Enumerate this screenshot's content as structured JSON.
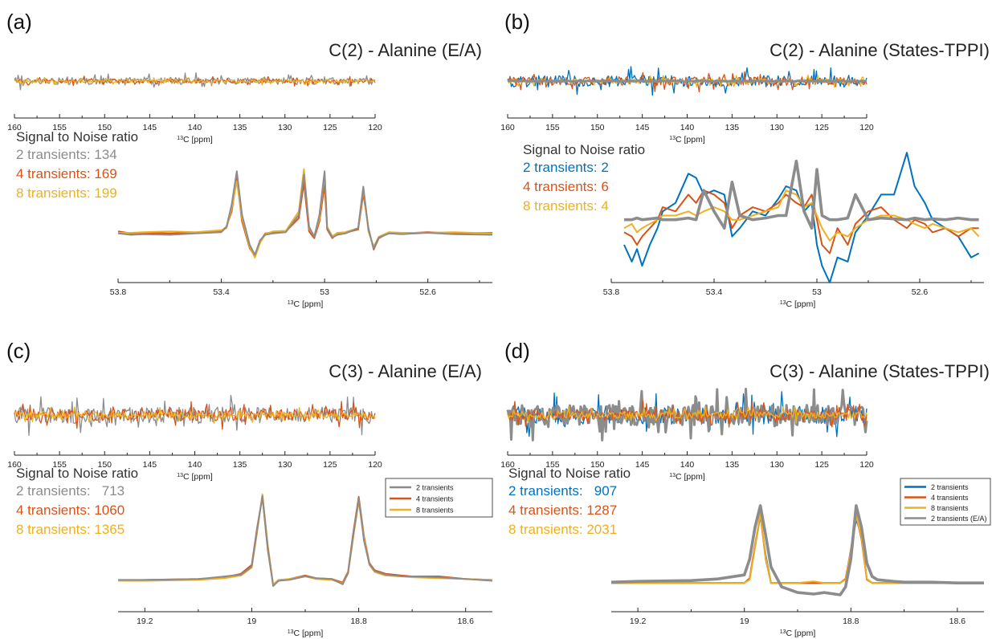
{
  "figure": {
    "series_colors": {
      "gray": "#8c8c8c",
      "blue": "#0072bd",
      "orange": "#d95319",
      "yellow": "#edb120"
    }
  },
  "panels": [
    {
      "letter": "(a)",
      "title": "C(2) - Alanine (E/A)",
      "snr_heading": "Signal to Noise ratio",
      "snr_lines": [
        {
          "text": "2 transients: 134",
          "color": "gray"
        },
        {
          "text": "4 transients: 169",
          "color": "orange"
        },
        {
          "text": "8 transients: 199",
          "color": "yellow"
        }
      ],
      "legend": []
    },
    {
      "letter": "(b)",
      "title": "C(2) - Alanine (States-TPPI)",
      "snr_heading": "Signal to Noise ratio",
      "snr_lines": [
        {
          "text": "2 transients: 2",
          "color": "blue"
        },
        {
          "text": "4 transients: 6",
          "color": "orange"
        },
        {
          "text": "8 transients: 4",
          "color": "yellow"
        }
      ],
      "legend": []
    },
    {
      "letter": "(c)",
      "title": "C(3) - Alanine (E/A)",
      "snr_heading": "Signal to Noise ratio",
      "snr_lines": [
        {
          "text": "2 transients:   713",
          "color": "gray"
        },
        {
          "text": "4 transients: 1060",
          "color": "orange"
        },
        {
          "text": "8 transients: 1365",
          "color": "yellow"
        }
      ],
      "legend": [
        {
          "label": "2 transients",
          "color": "gray"
        },
        {
          "label": "4 transients",
          "color": "orange"
        },
        {
          "label": "8 transients",
          "color": "yellow"
        }
      ]
    },
    {
      "letter": "(d)",
      "title": "C(3) - Alanine (States-TPPI)",
      "snr_heading": "Signal to Noise ratio",
      "snr_lines": [
        {
          "text": "2 transients:   907",
          "color": "blue"
        },
        {
          "text": "4 transients: 1287",
          "color": "orange"
        },
        {
          "text": "8 transients: 2031",
          "color": "yellow"
        }
      ],
      "legend": [
        {
          "label": "2 transients",
          "color": "blue"
        },
        {
          "label": "4 transients",
          "color": "orange"
        },
        {
          "label": "8 transients",
          "color": "yellow"
        },
        {
          "label": "2 transients (E/A)",
          "color": "gray"
        }
      ]
    }
  ],
  "chart_data": [
    {
      "panel": "(a)",
      "role": "full-spectrum noise",
      "type": "line",
      "xlabel": "13C [ppm]",
      "xlim": [
        160,
        120
      ],
      "x_reversed": true,
      "ticks": [
        160,
        155,
        150,
        145,
        140,
        135,
        130,
        125,
        120
      ],
      "grid": false,
      "noise": {
        "gray": 0.18,
        "orange": 0.1,
        "yellow": 0.08
      },
      "series": [
        {
          "color": "gray",
          "style": "noise"
        },
        {
          "color": "orange",
          "style": "noise"
        },
        {
          "color": "yellow",
          "style": "noise"
        }
      ]
    },
    {
      "panel": "(a)",
      "role": "zoom",
      "type": "line",
      "xlabel": "13C [ppm]",
      "xlim": [
        53.8,
        52.35
      ],
      "x_reversed": true,
      "ticks": [
        53.8,
        53.4,
        53,
        52.6
      ],
      "ylim": [
        -0.45,
        1.05
      ],
      "grid": false,
      "x": [
        53.8,
        53.75,
        53.7,
        53.6,
        53.5,
        53.4,
        53.38,
        53.36,
        53.34,
        53.32,
        53.29,
        53.27,
        53.25,
        53.23,
        53.2,
        53.15,
        53.1,
        53.08,
        53.06,
        53.04,
        53.02,
        53.0,
        52.99,
        52.97,
        52.95,
        52.92,
        52.87,
        52.85,
        52.83,
        52.81,
        52.79,
        52.75,
        52.7,
        52.6,
        52.5,
        52.35
      ],
      "series": [
        {
          "color": "orange",
          "values": [
            0.05,
            0.02,
            0.03,
            0.02,
            0.03,
            0.06,
            0.12,
            0.35,
            0.85,
            0.2,
            -0.2,
            -0.32,
            -0.1,
            0.02,
            0.04,
            0.05,
            0.25,
            0.78,
            0.05,
            -0.05,
            0.2,
            0.75,
            0.08,
            -0.05,
            0.02,
            0.03,
            0.08,
            0.62,
            0.1,
            -0.22,
            -0.05,
            0.03,
            0.02,
            0.04,
            0.02,
            0.03
          ]
        },
        {
          "color": "yellow",
          "values": [
            0.03,
            0.03,
            0.04,
            0.05,
            0.04,
            0.07,
            0.1,
            0.4,
            0.8,
            0.25,
            -0.18,
            -0.34,
            -0.12,
            0.01,
            0.05,
            0.06,
            0.35,
            0.98,
            0.1,
            -0.02,
            0.25,
            0.92,
            0.12,
            -0.02,
            0.03,
            0.04,
            0.1,
            0.7,
            0.05,
            -0.18,
            -0.03,
            0.04,
            0.03,
            0.03,
            0.04,
            0.02
          ]
        },
        {
          "color": "gray",
          "values": [
            0.02,
            0.0,
            0.01,
            0.0,
            0.02,
            0.04,
            0.12,
            0.45,
            0.95,
            0.3,
            -0.15,
            -0.3,
            -0.08,
            0.0,
            0.02,
            0.04,
            0.3,
            0.9,
            0.12,
            -0.03,
            0.3,
            0.95,
            0.1,
            -0.04,
            0.0,
            0.02,
            0.1,
            0.72,
            0.08,
            -0.2,
            -0.04,
            0.02,
            0.01,
            0.03,
            0.01,
            0.0
          ]
        }
      ]
    },
    {
      "panel": "(b)",
      "role": "full-spectrum noise",
      "type": "line",
      "xlabel": "13C [ppm]",
      "xlim": [
        160,
        120
      ],
      "x_reversed": true,
      "ticks": [
        160,
        155,
        150,
        145,
        140,
        135,
        130,
        125,
        120
      ],
      "grid": false,
      "noise": {
        "blue": 0.3,
        "orange": 0.22,
        "yellow": 0.12,
        "gray": 0.02
      },
      "series": [
        {
          "color": "blue",
          "style": "noise"
        },
        {
          "color": "orange",
          "style": "noise"
        },
        {
          "color": "yellow",
          "style": "noise"
        },
        {
          "color": "gray",
          "style": "noise-thick"
        }
      ]
    },
    {
      "panel": "(b)",
      "role": "zoom",
      "type": "line",
      "xlabel": "13C [ppm]",
      "xlim": [
        53.8,
        52.35
      ],
      "x_reversed": true,
      "ticks": [
        53.8,
        53.4,
        53,
        52.6
      ],
      "ylim": [
        -0.75,
        0.85
      ],
      "grid": false,
      "x": [
        53.75,
        53.72,
        53.7,
        53.68,
        53.65,
        53.62,
        53.6,
        53.55,
        53.5,
        53.47,
        53.44,
        53.4,
        53.36,
        53.33,
        53.3,
        53.25,
        53.2,
        53.15,
        53.12,
        53.08,
        53.05,
        53.02,
        53.0,
        52.98,
        52.95,
        52.92,
        52.88,
        52.85,
        52.8,
        52.75,
        52.7,
        52.65,
        52.62,
        52.58,
        52.55,
        52.5,
        52.45,
        52.4,
        52.37
      ],
      "series": [
        {
          "color": "blue",
          "values": [
            -0.3,
            -0.5,
            -0.35,
            -0.55,
            -0.3,
            -0.1,
            0.1,
            0.2,
            0.55,
            0.5,
            0.3,
            0.35,
            0.3,
            -0.2,
            -0.1,
            0.1,
            0.05,
            0.25,
            0.4,
            0.35,
            0.1,
            0.2,
            -0.3,
            -0.55,
            -0.75,
            -0.45,
            -0.5,
            -0.15,
            0.05,
            0.3,
            0.3,
            0.8,
            0.4,
            0.2,
            0.0,
            -0.1,
            -0.2,
            -0.45,
            -0.4
          ]
        },
        {
          "color": "orange",
          "values": [
            -0.15,
            -0.2,
            -0.3,
            -0.2,
            -0.1,
            0.0,
            0.15,
            0.1,
            0.3,
            0.2,
            0.35,
            0.3,
            0.2,
            -0.1,
            0.05,
            0.15,
            0.1,
            0.2,
            0.3,
            0.2,
            0.15,
            0.3,
            0.0,
            -0.3,
            -0.4,
            -0.1,
            -0.3,
            -0.05,
            0.1,
            0.15,
            0.0,
            -0.1,
            0.0,
            -0.05,
            -0.15,
            -0.1,
            -0.2,
            -0.1,
            -0.1
          ]
        },
        {
          "color": "yellow",
          "values": [
            -0.1,
            -0.05,
            -0.15,
            -0.1,
            -0.05,
            0.0,
            0.05,
            0.05,
            0.1,
            0.05,
            0.1,
            0.15,
            0.1,
            0.0,
            0.0,
            0.05,
            0.1,
            0.15,
            0.35,
            0.3,
            0.15,
            0.2,
            0.05,
            -0.1,
            -0.25,
            -0.15,
            -0.2,
            -0.1,
            0.0,
            0.05,
            0.05,
            0.0,
            -0.05,
            -0.1,
            -0.05,
            -0.1,
            -0.15,
            -0.1,
            -0.2
          ]
        },
        {
          "color": "gray",
          "values": [
            0.0,
            0.0,
            0.02,
            0.0,
            0.01,
            0.02,
            0.0,
            0.0,
            0.02,
            0.0,
            0.35,
            0.1,
            -0.1,
            0.45,
            0.05,
            0.0,
            0.02,
            0.05,
            0.05,
            0.7,
            0.1,
            -0.1,
            0.6,
            0.05,
            0.0,
            0.0,
            0.02,
            0.3,
            0.0,
            0.02,
            0.01,
            0.0,
            0.02,
            0.0,
            0.01,
            0.0,
            0.02,
            0.0,
            0.0
          ]
        }
      ]
    },
    {
      "panel": "(c)",
      "role": "full-spectrum noise",
      "type": "line",
      "xlabel": "13C [ppm]",
      "xlim": [
        160,
        120
      ],
      "x_reversed": true,
      "ticks": [
        160,
        155,
        150,
        145,
        140,
        135,
        130,
        125,
        120
      ],
      "grid": false,
      "noise": {
        "gray": 0.35,
        "orange": 0.25,
        "yellow": 0.15
      },
      "series": [
        {
          "color": "gray",
          "style": "noise"
        },
        {
          "color": "orange",
          "style": "noise"
        },
        {
          "color": "yellow",
          "style": "noise"
        }
      ]
    },
    {
      "panel": "(c)",
      "role": "zoom",
      "type": "line",
      "xlabel": "13C [ppm]",
      "xlim": [
        19.25,
        18.55
      ],
      "x_reversed": true,
      "ticks": [
        19.2,
        19,
        18.8,
        18.6
      ],
      "ylim": [
        -0.15,
        1.05
      ],
      "grid": false,
      "x": [
        19.25,
        19.2,
        19.1,
        19.05,
        19.02,
        19.0,
        18.99,
        18.98,
        18.97,
        18.96,
        18.95,
        18.93,
        18.9,
        18.88,
        18.85,
        18.83,
        18.82,
        18.81,
        18.8,
        18.79,
        18.78,
        18.77,
        18.75,
        18.72,
        18.7,
        18.65,
        18.6,
        18.55
      ],
      "series": [
        {
          "color": "orange",
          "values": [
            0.0,
            0.01,
            0.02,
            0.04,
            0.08,
            0.18,
            0.6,
            0.95,
            0.35,
            -0.05,
            0.0,
            0.02,
            0.06,
            0.03,
            0.02,
            -0.02,
            0.1,
            0.55,
            0.95,
            0.5,
            0.2,
            0.12,
            0.08,
            0.06,
            0.05,
            0.05,
            0.02,
            0.01
          ]
        },
        {
          "color": "yellow",
          "values": [
            0.0,
            0.0,
            0.01,
            0.03,
            0.06,
            0.15,
            0.55,
            0.98,
            0.4,
            -0.04,
            0.01,
            0.02,
            0.05,
            0.02,
            0.01,
            -0.03,
            0.08,
            0.5,
            0.9,
            0.48,
            0.18,
            0.1,
            0.06,
            0.05,
            0.04,
            0.03,
            0.02,
            0.01
          ]
        },
        {
          "color": "gray",
          "values": [
            0.01,
            0.01,
            0.02,
            0.05,
            0.07,
            0.16,
            0.58,
            0.96,
            0.38,
            -0.06,
            0.0,
            0.01,
            0.05,
            0.03,
            0.02,
            -0.04,
            0.09,
            0.52,
            0.93,
            0.45,
            0.19,
            0.11,
            0.07,
            0.05,
            0.05,
            0.04,
            0.02,
            0.0
          ]
        }
      ]
    },
    {
      "panel": "(d)",
      "role": "full-spectrum noise",
      "type": "line",
      "xlabel": "13C [ppm]",
      "xlim": [
        160,
        120
      ],
      "x_reversed": true,
      "ticks": [
        160,
        155,
        150,
        145,
        140,
        135,
        130,
        125,
        120
      ],
      "grid": false,
      "noise": {
        "blue": 0.4,
        "gray": 0.45,
        "orange": 0.25,
        "yellow": 0.15
      },
      "series": [
        {
          "color": "blue",
          "style": "noise"
        },
        {
          "color": "gray",
          "style": "noise-thick"
        },
        {
          "color": "orange",
          "style": "noise"
        },
        {
          "color": "yellow",
          "style": "noise"
        }
      ]
    },
    {
      "panel": "(d)",
      "role": "zoom",
      "type": "line",
      "xlabel": "13C [ppm]",
      "xlim": [
        19.25,
        18.55
      ],
      "x_reversed": true,
      "ticks": [
        19.2,
        19,
        18.8,
        18.6
      ],
      "ylim": [
        -0.2,
        1.05
      ],
      "grid": false,
      "x": [
        19.25,
        19.2,
        19.1,
        19.05,
        19.0,
        18.99,
        18.98,
        18.97,
        18.96,
        18.95,
        18.93,
        18.9,
        18.87,
        18.85,
        18.82,
        18.81,
        18.8,
        18.79,
        18.78,
        18.77,
        18.76,
        18.75,
        18.72,
        18.7,
        18.65,
        18.6,
        18.55
      ],
      "series": [
        {
          "color": "blue",
          "values": [
            0.0,
            0.0,
            0.0,
            0.0,
            0.0,
            0.05,
            0.45,
            0.85,
            0.35,
            0.0,
            0.0,
            0.0,
            0.0,
            0.0,
            0.0,
            0.05,
            0.4,
            0.8,
            0.6,
            0.05,
            0.0,
            0.0,
            0.0,
            0.0,
            0.0,
            0.0,
            0.0
          ]
        },
        {
          "color": "orange",
          "values": [
            0.0,
            0.0,
            0.0,
            0.0,
            0.0,
            0.06,
            0.48,
            0.86,
            0.3,
            0.0,
            0.0,
            0.0,
            0.0,
            0.0,
            0.0,
            0.05,
            0.42,
            0.85,
            0.55,
            0.04,
            0.0,
            0.0,
            0.0,
            0.0,
            0.0,
            0.0,
            0.0
          ]
        },
        {
          "color": "yellow",
          "values": [
            0.0,
            0.0,
            0.0,
            0.0,
            0.0,
            0.04,
            0.45,
            0.88,
            0.32,
            0.0,
            0.0,
            0.0,
            0.02,
            0.0,
            0.0,
            0.04,
            0.4,
            0.84,
            0.58,
            0.05,
            0.0,
            0.0,
            0.0,
            0.0,
            0.0,
            0.0,
            0.0
          ]
        },
        {
          "color": "gray",
          "values": [
            0.01,
            0.02,
            0.03,
            0.05,
            0.1,
            0.3,
            0.7,
            0.97,
            0.6,
            0.2,
            -0.05,
            -0.12,
            -0.14,
            -0.12,
            -0.15,
            -0.05,
            0.3,
            0.97,
            0.7,
            0.25,
            0.08,
            0.04,
            0.02,
            0.01,
            0.01,
            0.0,
            0.0
          ]
        }
      ]
    }
  ]
}
